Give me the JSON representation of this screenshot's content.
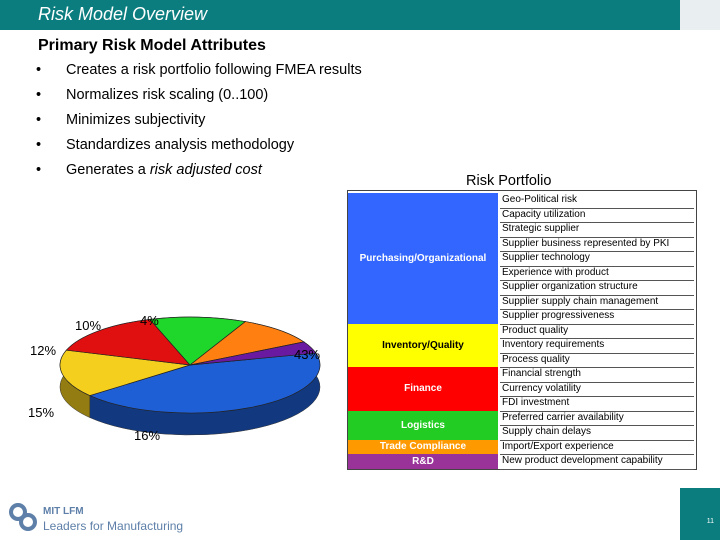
{
  "header": {
    "title": "Risk Model Overview"
  },
  "attributes": {
    "heading": "Primary Risk Model Attributes",
    "bullet_glyph": "•",
    "items": [
      "Creates a risk portfolio following FMEA results",
      "Normalizes risk scaling (0..100)",
      "Minimizes subjectivity",
      "Standardizes analysis methodology",
      "Generates a risk adjusted cost"
    ],
    "last_item_plain": "Generates a ",
    "last_item_italic": "risk adjusted cost"
  },
  "chart_data": {
    "type": "pie",
    "title": "",
    "slices": [
      {
        "label": "43%",
        "value": 43,
        "color": "#1f5fd6"
      },
      {
        "label": "16%",
        "value": 16,
        "color": "#f5cf1e"
      },
      {
        "label": "15%",
        "value": 15,
        "color": "#e01010"
      },
      {
        "label": "12%",
        "value": 12,
        "color": "#1fd62a"
      },
      {
        "label": "10%",
        "value": 10,
        "color": "#ff7f10"
      },
      {
        "label": "4%",
        "value": 4,
        "color": "#6a1aa0"
      }
    ]
  },
  "portfolio": {
    "title": "Risk Portfolio",
    "categories": [
      {
        "name": "Purchasing/Organizational",
        "color": "#3366ff",
        "text_color": "#ffffff",
        "items": [
          "Geo-Political risk",
          "Capacity utilization",
          "Strategic supplier",
          "Supplier business represented by PKI",
          "Supplier technology",
          "Experience with product",
          "Supplier organization structure",
          "Supplier supply chain management",
          "Supplier progressiveness"
        ]
      },
      {
        "name": "Inventory/Quality",
        "color": "#ffff00",
        "text_color": "#000000",
        "items": [
          "Product quality",
          "Inventory requirements",
          "Process quality"
        ]
      },
      {
        "name": "Finance",
        "color": "#ff0000",
        "text_color": "#ffffff",
        "items": [
          "Financial strength",
          "Currency volatility",
          "FDI investment"
        ]
      },
      {
        "name": "Logistics",
        "color": "#22cc22",
        "text_color": "#ffffff",
        "items": [
          "Preferred carrier availability",
          "Supply chain delays"
        ]
      },
      {
        "name": "Trade Compliance",
        "color": "#ff9900",
        "text_color": "#ffffff",
        "items": [
          "Import/Export experience"
        ]
      },
      {
        "name": "R&D",
        "color": "#993399",
        "text_color": "#ffffff",
        "items": [
          "New product development capability"
        ]
      }
    ]
  },
  "footer": {
    "org_short": "MIT LFM",
    "org_name": "Leaders for Manufacturing",
    "page_number": "11"
  }
}
